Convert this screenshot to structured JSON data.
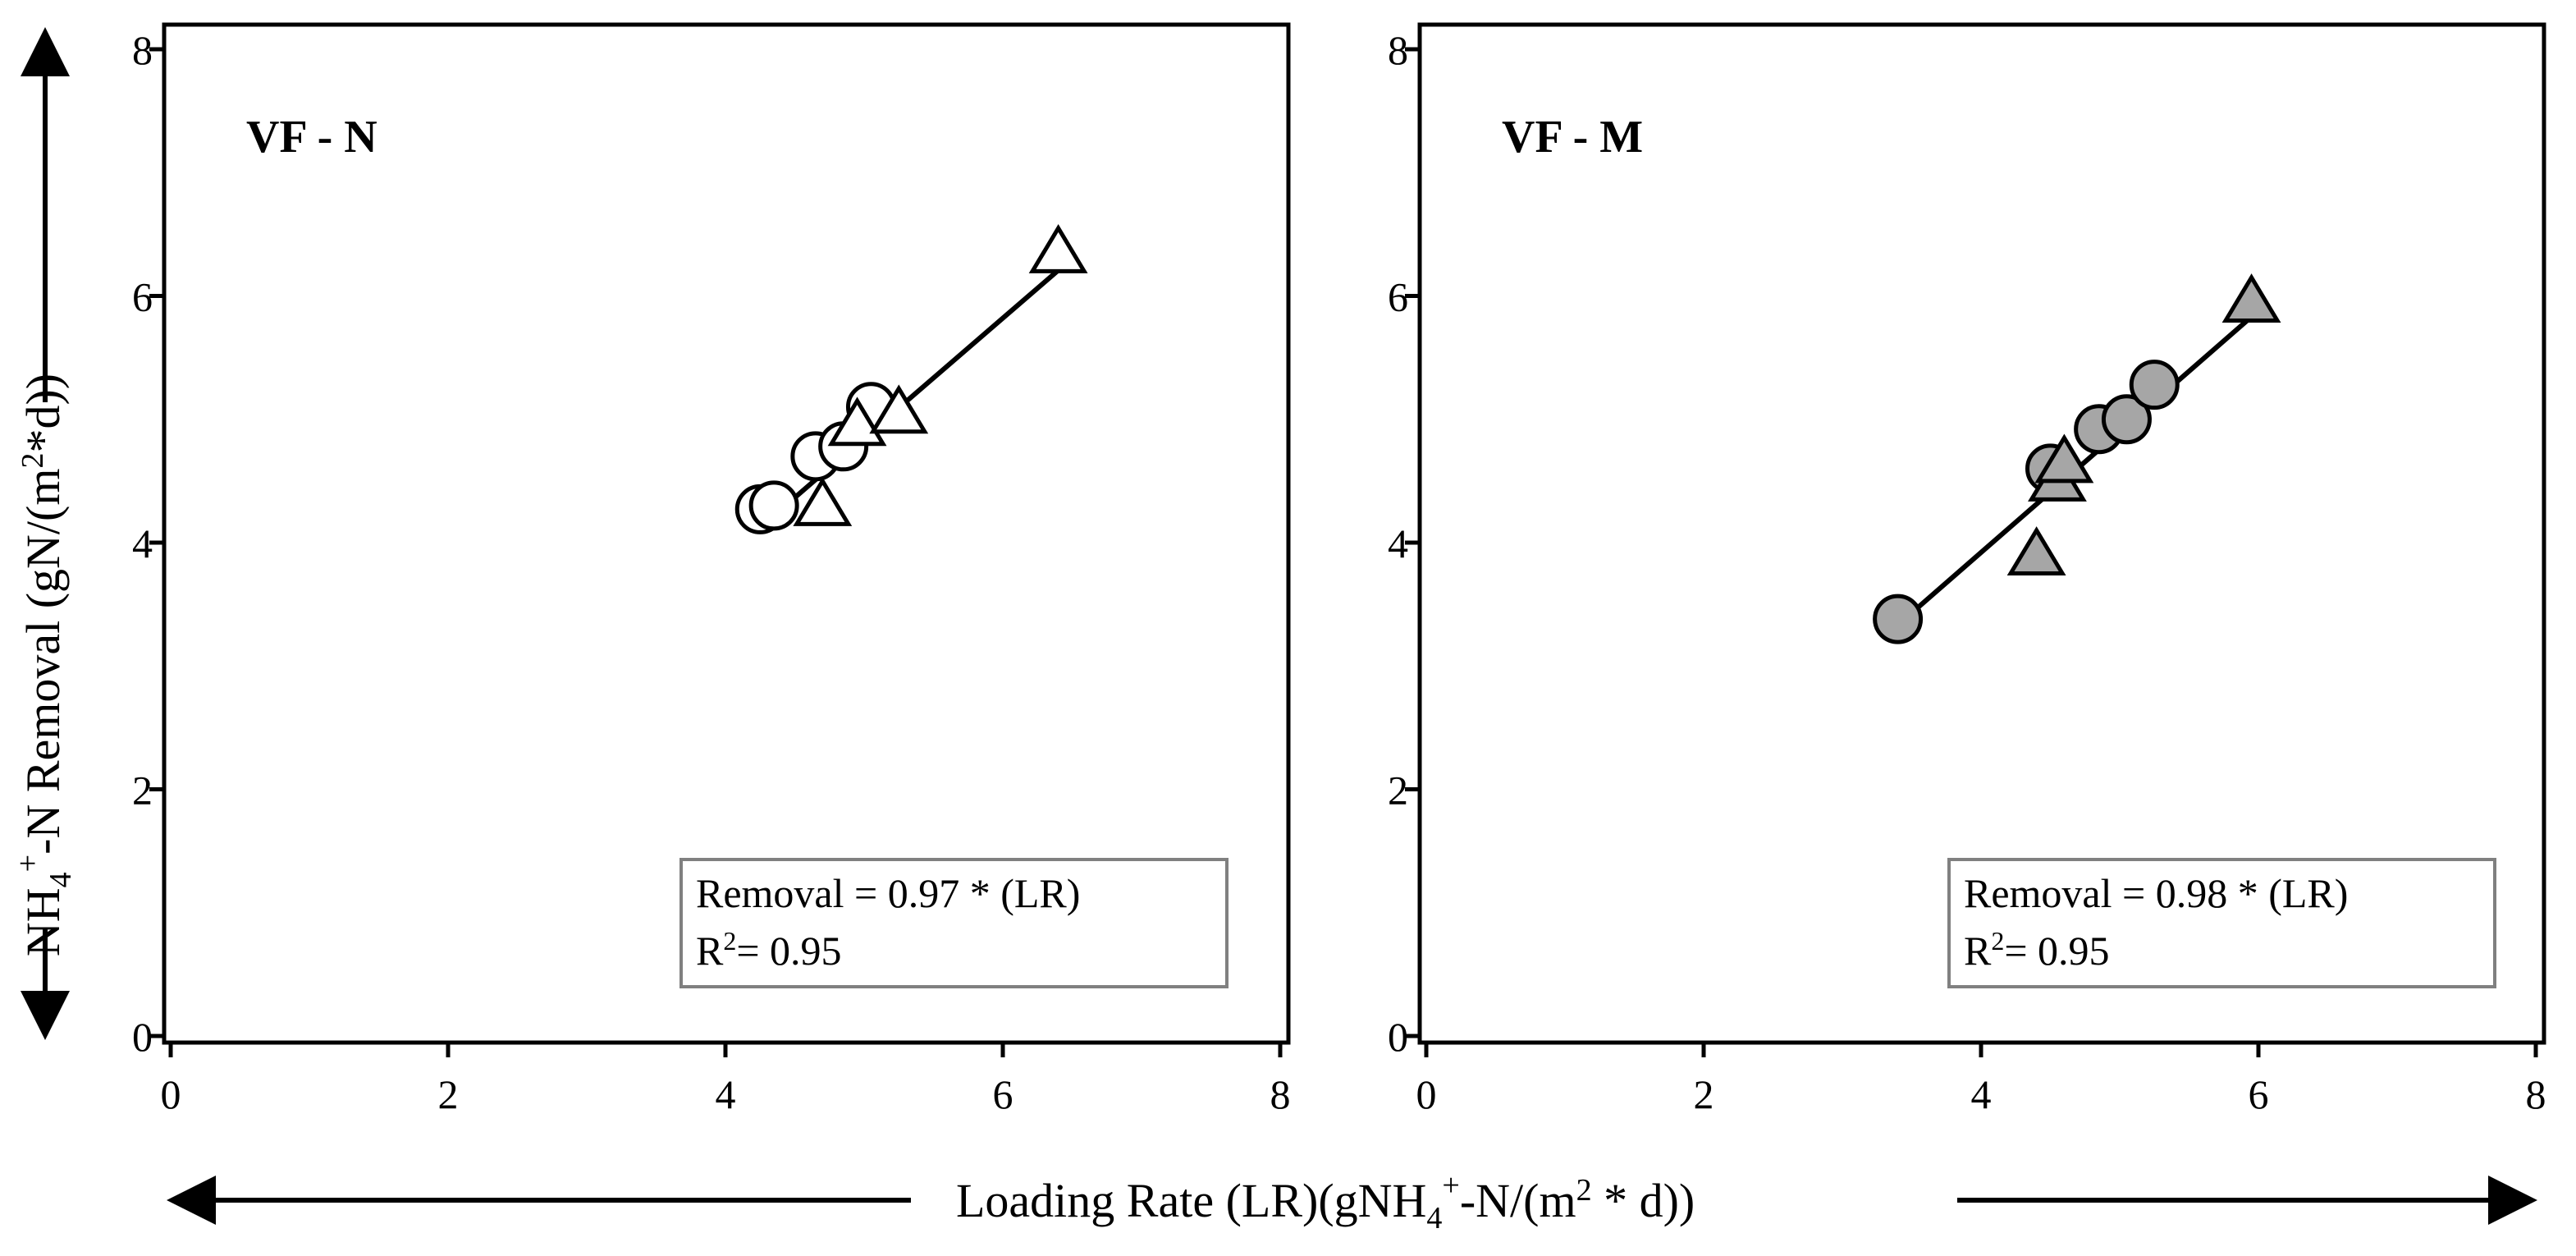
{
  "x_axis_title": {
    "pre": "Loading Rate (LR)(gNH",
    "sub": "4",
    "sup": "+",
    "mid": "-N/(m",
    "sup2": "2",
    "post": " * d))"
  },
  "y_axis_title": {
    "pre": "NH",
    "sub": "4",
    "sup": "+",
    "mid": "-N Removal (gN/(m",
    "sup2": "2",
    "post": "*d))"
  },
  "chart_data": [
    {
      "type": "scatter",
      "panel_label": "VF - N",
      "xlim": [
        0,
        8
      ],
      "ylim": [
        0,
        8
      ],
      "x_ticks": [
        "0",
        "2",
        "4",
        "6",
        "8"
      ],
      "y_ticks": [
        "0",
        "2",
        "4",
        "6",
        "8"
      ],
      "marker_fill": "#ffffff",
      "series": [
        {
          "marker": "circle",
          "points": [
            [
              4.25,
              4.27
            ],
            [
              4.35,
              4.3
            ],
            [
              4.65,
              4.7
            ],
            [
              4.85,
              4.78
            ],
            [
              5.05,
              5.1
            ]
          ]
        },
        {
          "marker": "triangle",
          "points": [
            [
              4.7,
              4.3
            ],
            [
              4.95,
              4.95
            ],
            [
              5.25,
              5.05
            ],
            [
              6.4,
              6.35
            ]
          ]
        }
      ],
      "fit_line": {
        "x": [
          4.25,
          6.4
        ],
        "slope": 0.97
      },
      "equation": {
        "line1": "Removal =  0.97 * (LR)",
        "r2_label": "R",
        "r2_sup": "2",
        "r2_value": "= 0.95"
      }
    },
    {
      "type": "scatter",
      "panel_label": "VF - M",
      "xlim": [
        0,
        8
      ],
      "ylim": [
        0,
        8
      ],
      "x_ticks": [
        "0",
        "2",
        "4",
        "6",
        "8"
      ],
      "y_ticks": [
        "0",
        "2",
        "4",
        "6",
        "8"
      ],
      "marker_fill": "#a6a6a6",
      "series": [
        {
          "marker": "circle",
          "points": [
            [
              3.4,
              3.38
            ],
            [
              4.5,
              4.6
            ],
            [
              4.85,
              4.92
            ],
            [
              5.05,
              5.0
            ],
            [
              5.25,
              5.28
            ]
          ]
        },
        {
          "marker": "triangle",
          "points": [
            [
              4.4,
              3.9
            ],
            [
              4.55,
              4.5
            ],
            [
              4.6,
              4.65
            ],
            [
              5.95,
              5.95
            ]
          ]
        }
      ],
      "fit_line": {
        "x": [
          3.4,
          5.95
        ],
        "slope": 0.98
      },
      "equation": {
        "line1": "Removal =  0.98 * (LR)",
        "r2_label": "R",
        "r2_sup": "2",
        "r2_value": "= 0.95"
      }
    }
  ]
}
